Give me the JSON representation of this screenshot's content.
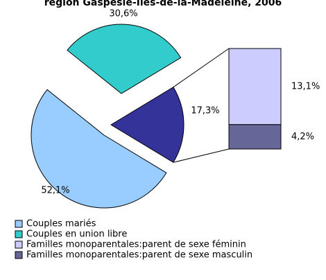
{
  "chart_data": {
    "type": "pie-of-bar",
    "title": "région Gaspésie-Îles-de-la-Madeleine, 2006",
    "pie": {
      "categories": [
        "Couples mariés",
        "Couples en union libre",
        null
      ],
      "values": [
        52.1,
        30.6,
        17.3
      ],
      "value_labels": [
        "52,1%",
        "30,6%",
        "17,3%"
      ],
      "colors": [
        "#99ccff",
        "#33cccc",
        "#333399"
      ]
    },
    "bar": {
      "categories": [
        "Familles monoparentales:parent de sexe féminin",
        "Familles monoparentales:parent de sexe masculin"
      ],
      "values": [
        13.1,
        4.2
      ],
      "value_labels": [
        "13,1%",
        "4,2%"
      ],
      "colors": [
        "#ccccff",
        "#666699"
      ]
    }
  }
}
